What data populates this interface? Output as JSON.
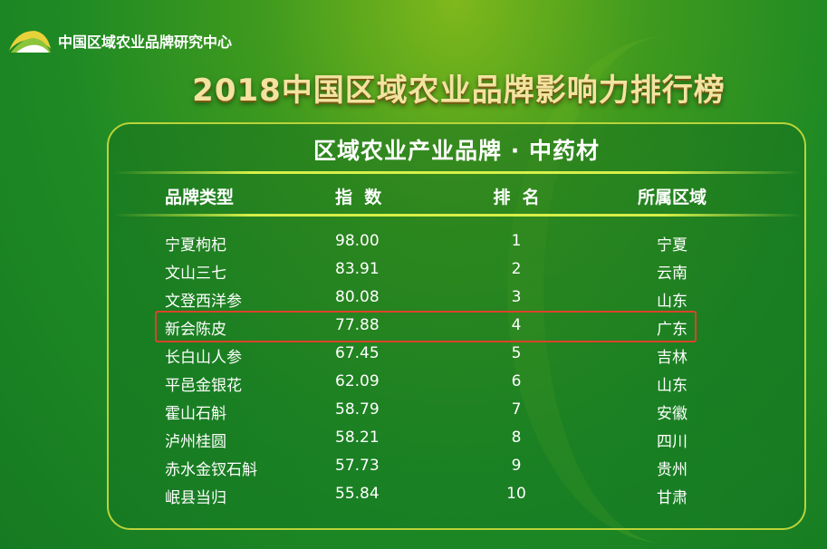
{
  "org": "中国区域农业品牌研究中心",
  "title": "2018中国区域农业品牌影响力排行榜",
  "subtitle": "区域农业产业品牌 · 中药材",
  "columns": [
    "品牌类型",
    "指  数",
    "排  名",
    "所属区域"
  ],
  "rows": [
    {
      "name": "宁夏枸杞",
      "index": "98.00",
      "rank": "1",
      "region": "宁夏"
    },
    {
      "name": "文山三七",
      "index": "83.91",
      "rank": "2",
      "region": "云南"
    },
    {
      "name": "文登西洋参",
      "index": "80.08",
      "rank": "3",
      "region": "山东"
    },
    {
      "name": "新会陈皮",
      "index": "77.88",
      "rank": "4",
      "region": "广东"
    },
    {
      "name": "长白山人参",
      "index": "67.45",
      "rank": "5",
      "region": "吉林"
    },
    {
      "name": "平邑金银花",
      "index": "62.09",
      "rank": "6",
      "region": "山东"
    },
    {
      "name": "霍山石斛",
      "index": "58.79",
      "rank": "7",
      "region": "安徽"
    },
    {
      "name": "泸州桂圆",
      "index": "58.21",
      "rank": "8",
      "region": "四川"
    },
    {
      "name": "赤水金钗石斛",
      "index": "57.73",
      "rank": "9",
      "region": "贵州"
    },
    {
      "name": "岷县当归",
      "index": "55.84",
      "rank": "10",
      "region": "甘肃"
    }
  ],
  "highlighted_rank": 4,
  "colors": {
    "background": "#1f8a24",
    "title": "#f3e3a0",
    "border": "#b9d43a",
    "highlight": "#d9442a"
  }
}
